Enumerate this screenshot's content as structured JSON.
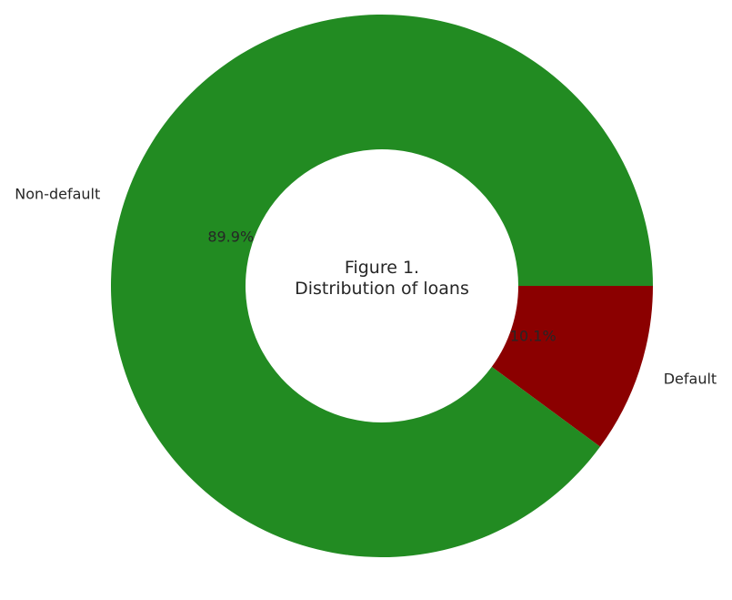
{
  "chart_data": {
    "type": "pie",
    "donut": true,
    "title": "Figure 1.\nDistribution of loans",
    "title_lines": [
      "Figure 1.",
      "Distribution of loans"
    ],
    "categories": [
      "Default",
      "Non-default"
    ],
    "values": [
      10.1,
      89.9
    ],
    "percent_labels": [
      "10.1%",
      "89.9%"
    ],
    "colors": [
      "#8b0000",
      "#228b22"
    ],
    "start_angle_deg": 0,
    "direction": "clockwise",
    "legend": "none",
    "grid": false
  }
}
